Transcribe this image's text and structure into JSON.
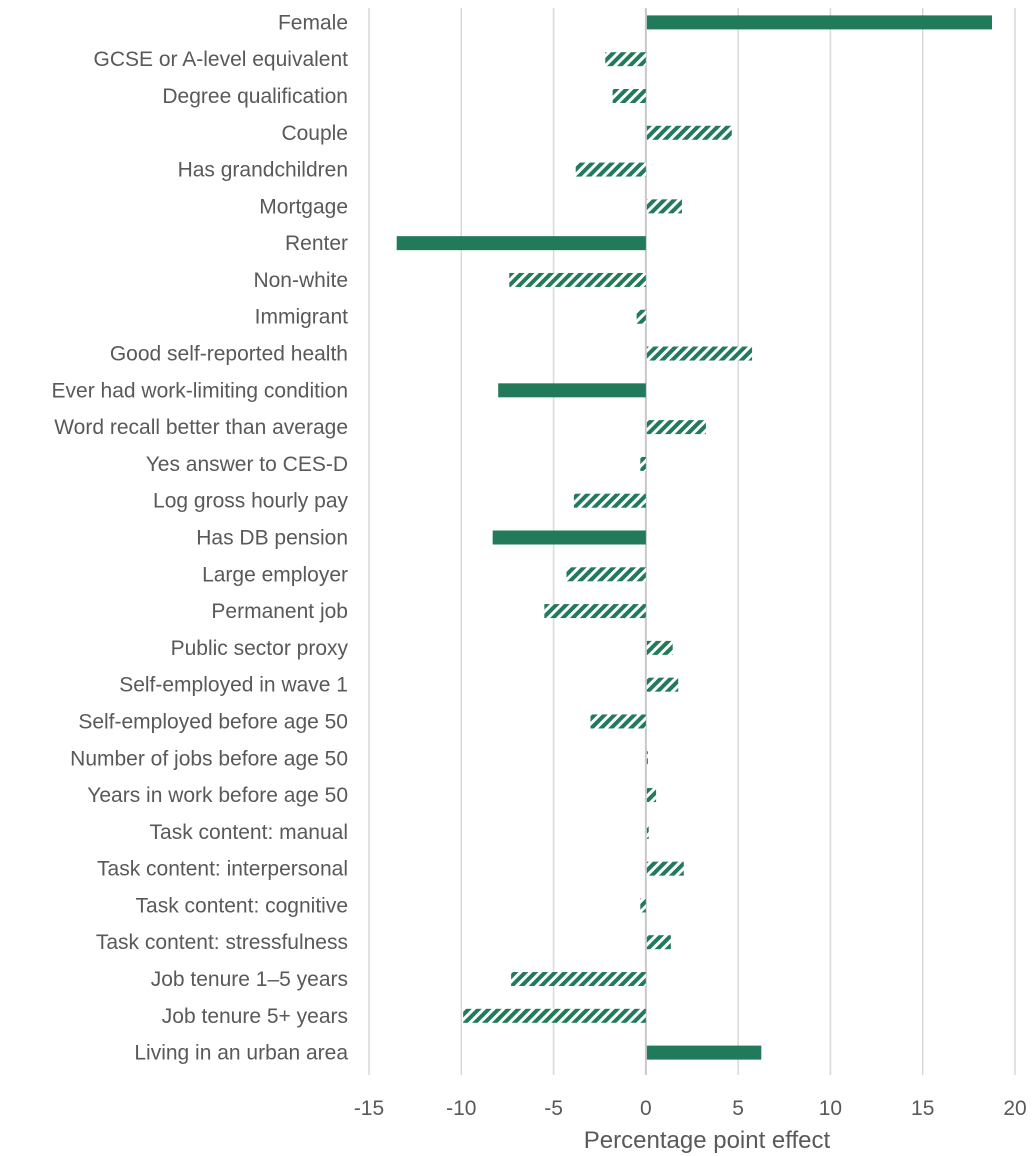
{
  "chart_data": {
    "type": "bar",
    "orientation": "horizontal",
    "title": "",
    "xlabel": "Percentage point effect",
    "ylabel": "",
    "xlim": [
      -15,
      20
    ],
    "xticks": [
      -15,
      -10,
      -5,
      0,
      5,
      10,
      15,
      20
    ],
    "grid": "vertical",
    "legend": "none",
    "colors": {
      "bar": "#217a5a",
      "gridline": "#d9d9d9",
      "text": "#595959"
    },
    "style_note_values": [
      "solid",
      "hatched"
    ],
    "categories": [
      "Female",
      "GCSE or A-level equivalent",
      "Degree qualification",
      "Couple",
      "Has grandchildren",
      "Mortgage",
      "Renter",
      "Non-white",
      "Immigrant",
      "Good self-reported health",
      "Ever had work-limiting condition",
      "Word recall better than average",
      "Yes answer to CES-D",
      "Log gross hourly pay",
      "Has DB pension",
      "Large employer",
      "Permanent job",
      "Public sector proxy",
      "Self-employed in wave 1",
      "Self-employed before age 50",
      "Number of jobs before age 50",
      "Years in work before age 50",
      "Task content: manual",
      "Task content: interpersonal ",
      "Task content: cognitive",
      "Task content: stressfulness",
      "Job tenure 1–5 years",
      "Job tenure 5+ years",
      "Living in an urban area"
    ],
    "values": [
      18.7,
      -2.2,
      -1.8,
      4.6,
      -3.8,
      1.9,
      -13.5,
      -7.4,
      -0.5,
      5.7,
      -8.0,
      3.2,
      -0.3,
      -3.9,
      -8.3,
      -4.3,
      -5.5,
      1.4,
      1.7,
      -3.0,
      0.05,
      0.5,
      0.1,
      2.0,
      -0.3,
      1.3,
      -7.3,
      -9.9,
      6.2
    ],
    "fill_style": [
      "solid",
      "hatched",
      "hatched",
      "hatched",
      "hatched",
      "hatched",
      "solid",
      "hatched",
      "hatched",
      "hatched",
      "solid",
      "hatched",
      "hatched",
      "hatched",
      "solid",
      "hatched",
      "hatched",
      "hatched",
      "hatched",
      "hatched",
      "hatched",
      "hatched",
      "hatched",
      "hatched",
      "hatched",
      "hatched",
      "hatched",
      "hatched",
      "solid"
    ]
  }
}
